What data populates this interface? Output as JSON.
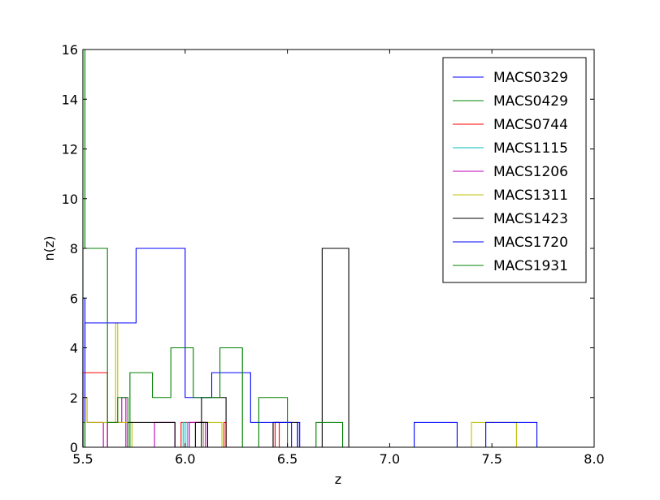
{
  "chart_data": {
    "type": "line",
    "xlabel": "z",
    "ylabel": "n(z)",
    "xlim": [
      5.5,
      8.0
    ],
    "ylim": [
      0,
      16
    ],
    "xticks": [
      "5.5",
      "6.0",
      "6.5",
      "7.0",
      "7.5",
      "8.0"
    ],
    "yticks": [
      "0",
      "2",
      "4",
      "6",
      "8",
      "10",
      "12",
      "14",
      "16"
    ],
    "legend_position": "upper-right",
    "grid": false,
    "series": [
      {
        "name": "MACS0329",
        "color": "#0000ff",
        "steps": [
          [
            5.5,
            6
          ],
          [
            5.51,
            0
          ]
        ]
      },
      {
        "name": "MACS0429",
        "color": "#008000",
        "steps": [
          [
            5.5,
            1
          ],
          [
            5.51,
            0
          ]
        ]
      },
      {
        "name": "MACS0744",
        "color": "#ff0000",
        "steps": [
          [
            5.5,
            3
          ],
          [
            5.62,
            0
          ],
          [
            5.98,
            1
          ],
          [
            6.1,
            0
          ],
          [
            6.19,
            1
          ],
          [
            6.2,
            0
          ],
          [
            6.44,
            1
          ],
          [
            6.46,
            0
          ]
        ]
      },
      {
        "name": "MACS1115",
        "color": "#00bfbf",
        "steps": [
          [
            5.99,
            1
          ],
          [
            6.0,
            0
          ],
          [
            6.01,
            1
          ],
          [
            6.02,
            0
          ]
        ]
      },
      {
        "name": "MACS1206",
        "color": "#bf00bf",
        "steps": [
          [
            5.5,
            2
          ],
          [
            5.52,
            1
          ],
          [
            5.6,
            0
          ],
          [
            5.62,
            1
          ],
          [
            5.69,
            2
          ],
          [
            5.71,
            0
          ],
          [
            5.85,
            1
          ],
          [
            5.95,
            0
          ],
          [
            6.02,
            1
          ],
          [
            6.1,
            0
          ]
        ]
      },
      {
        "name": "MACS1311",
        "color": "#bfbf00",
        "steps": [
          [
            5.5,
            2
          ],
          [
            5.52,
            1
          ],
          [
            5.66,
            5
          ],
          [
            5.67,
            1
          ],
          [
            5.74,
            0
          ],
          [
            6.09,
            1
          ],
          [
            6.18,
            0
          ],
          [
            7.4,
            1
          ],
          [
            7.62,
            0
          ]
        ]
      },
      {
        "name": "MACS1423",
        "color": "#000000",
        "steps": [
          [
            5.72,
            1
          ],
          [
            5.95,
            0
          ],
          [
            6.05,
            1
          ],
          [
            6.11,
            0
          ],
          [
            6.08,
            2
          ],
          [
            6.2,
            0
          ],
          [
            6.43,
            1
          ],
          [
            6.55,
            0
          ],
          [
            6.67,
            8
          ],
          [
            6.8,
            0
          ]
        ]
      },
      {
        "name": "MACS1720",
        "color": "#0000ff",
        "steps": [
          [
            5.5,
            4
          ],
          [
            5.51,
            5
          ],
          [
            5.76,
            8
          ],
          [
            6.0,
            2
          ],
          [
            6.13,
            3
          ],
          [
            6.32,
            1
          ],
          [
            6.52,
            0
          ],
          [
            6.55,
            1
          ],
          [
            6.56,
            0
          ],
          [
            7.12,
            1
          ],
          [
            7.33,
            0
          ],
          [
            7.47,
            1
          ],
          [
            7.72,
            0
          ]
        ]
      },
      {
        "name": "MACS1931",
        "color": "#008000",
        "steps": [
          [
            5.5,
            16
          ],
          [
            5.51,
            8
          ],
          [
            5.62,
            1
          ],
          [
            5.67,
            2
          ],
          [
            5.72,
            0
          ],
          [
            5.73,
            3
          ],
          [
            5.84,
            2
          ],
          [
            5.93,
            4
          ],
          [
            6.04,
            2
          ],
          [
            6.17,
            4
          ],
          [
            6.28,
            0
          ],
          [
            6.36,
            2
          ],
          [
            6.5,
            0
          ],
          [
            6.64,
            1
          ],
          [
            6.77,
            0
          ]
        ]
      }
    ]
  }
}
